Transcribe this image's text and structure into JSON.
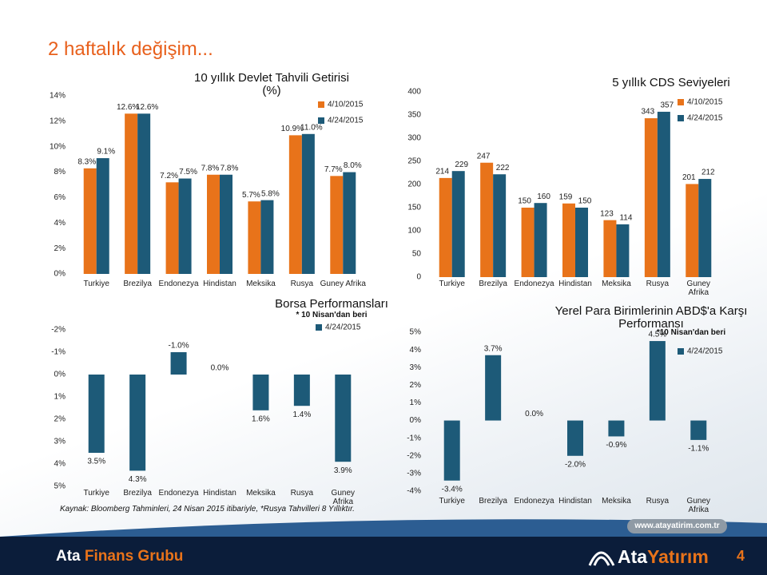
{
  "page": {
    "title": "2 haftalık değişim...",
    "source": "Kaynak: Bloomberg Tahminleri, 24 Nisan 2015 itibariyle, *Rusya  Tahvilleri 8 Yıllıktır.",
    "brand_left": "Ata",
    "brand_right": "Finans Grubu",
    "url": "www.atayatirim.com.tr",
    "logo_left": "Ata",
    "logo_right": "Yatırım",
    "page_number": 4
  },
  "chart_data": [
    {
      "type": "bar",
      "title": "10 yıllık Devlet Tahvili Getirisi (%)",
      "categories": [
        "Turkiye",
        "Brezilya",
        "Endonezya",
        "Hindistan",
        "Meksika",
        "Rusya",
        "Guney Afrika"
      ],
      "series": [
        {
          "name": "4/10/2015",
          "color": "#e8731a",
          "values": [
            8.3,
            12.6,
            7.2,
            7.8,
            5.7,
            10.9,
            7.7
          ],
          "value_labels": [
            "8.3%",
            "12.6%",
            "7.2%",
            "7.8%",
            "5.7%",
            "10.9%",
            "7.7%"
          ]
        },
        {
          "name": "4/24/2015",
          "color": "#1d5a78",
          "values": [
            9.1,
            12.6,
            7.5,
            7.8,
            5.8,
            11.0,
            8.0
          ],
          "value_labels": [
            "9.1%",
            "12.6%",
            "7.5%",
            "7.8%",
            "5.8%",
            "11.0%",
            "8.0%"
          ]
        }
      ],
      "ylim": [
        0,
        14
      ],
      "yticks": [
        {
          "value": 0,
          "label": "0%"
        },
        {
          "value": 2,
          "label": "2%"
        },
        {
          "value": 4,
          "label": "4%"
        },
        {
          "value": 6,
          "label": "6%"
        },
        {
          "value": 8,
          "label": "8%"
        },
        {
          "value": 10,
          "label": "10%"
        },
        {
          "value": 12,
          "label": "12%"
        },
        {
          "value": 14,
          "label": "14%"
        }
      ],
      "grid": false
    },
    {
      "type": "bar",
      "title": "5 yıllık CDS Seviyeleri",
      "categories": [
        "Turkiye",
        "Brezilya",
        "Endonezya",
        "Hindistan",
        "Meksika",
        "Rusya",
        "Guney Afrika"
      ],
      "series": [
        {
          "name": "4/10/2015",
          "color": "#e8731a",
          "values": [
            214,
            247,
            150,
            159,
            123,
            343,
            201
          ]
        },
        {
          "name": "4/24/2015",
          "color": "#1d5a78",
          "values": [
            229,
            222,
            160,
            150,
            114,
            357,
            212
          ]
        }
      ],
      "ylim": [
        0,
        400
      ],
      "yticks": [
        0,
        50,
        100,
        150,
        200,
        250,
        300,
        350,
        400
      ],
      "grid": false
    },
    {
      "type": "bar",
      "title": "Borsa Performansları",
      "subtitle": "* 10 Nisan'dan beri",
      "categories": [
        "Turkiye",
        "Brezilya",
        "Endonezya",
        "Hindistan",
        "Meksika",
        "Rusya",
        "Guney Afrika"
      ],
      "series": [
        {
          "name": "4/24/2015",
          "color": "#1d5a78",
          "values": [
            3.5,
            4.3,
            -1.0,
            0.0,
            1.6,
            1.4,
            3.9
          ],
          "value_labels": [
            "3.5%",
            "4.3%",
            "-1.0%",
            "0.0%",
            "1.6%",
            "1.4%",
            "3.9%"
          ]
        }
      ],
      "ylim": [
        5,
        -2
      ],
      "yticks": [
        {
          "value": -2,
          "label": "-2%"
        },
        {
          "value": -1,
          "label": "-1%"
        },
        {
          "value": 0,
          "label": "0%"
        },
        {
          "value": 1,
          "label": "1%"
        },
        {
          "value": 2,
          "label": "2%"
        },
        {
          "value": 3,
          "label": "3%"
        },
        {
          "value": 4,
          "label": "4%"
        },
        {
          "value": 5,
          "label": "5%"
        }
      ],
      "grid": false
    },
    {
      "type": "bar",
      "title": "Yerel Para Birimlerinin ABD$'a Karşı Performansı",
      "subtitle": "*10 Nisan'dan beri",
      "categories": [
        "Turkiye",
        "Brezilya",
        "Endonezya",
        "Hindistan",
        "Meksika",
        "Rusya",
        "Guney Afrika"
      ],
      "series": [
        {
          "name": "4/24/2015",
          "color": "#1d5a78",
          "values": [
            -3.4,
            3.7,
            0.0,
            -2.0,
            -0.9,
            4.5,
            -1.1
          ],
          "value_labels": [
            "-3.4%",
            "3.7%",
            "0.0%",
            "-2.0%",
            "-0.9%",
            "4.5%",
            "-1.1%"
          ]
        }
      ],
      "ylim": [
        -4,
        5
      ],
      "yticks": [
        {
          "value": -4,
          "label": "-4%"
        },
        {
          "value": -3,
          "label": "-3%"
        },
        {
          "value": -2,
          "label": "-2%"
        },
        {
          "value": -1,
          "label": "-1%"
        },
        {
          "value": 0,
          "label": "0%"
        },
        {
          "value": 1,
          "label": "1%"
        },
        {
          "value": 2,
          "label": "2%"
        },
        {
          "value": 3,
          "label": "3%"
        },
        {
          "value": 4,
          "label": "4%"
        },
        {
          "value": 5,
          "label": "5%"
        }
      ],
      "grid": false
    }
  ]
}
